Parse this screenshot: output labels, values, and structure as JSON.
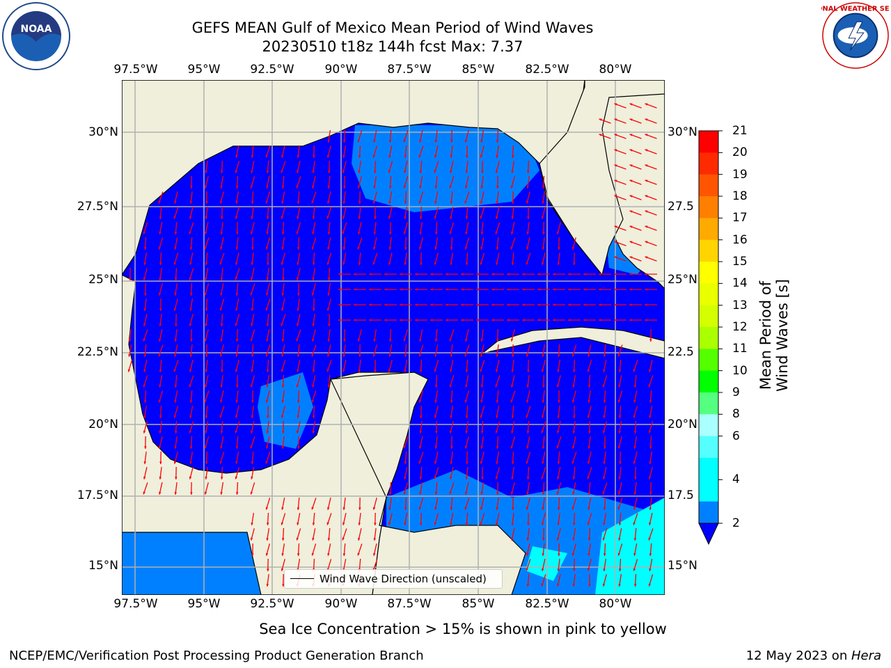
{
  "title": {
    "line1": "GEFS MEAN Gulf of Mexico Mean Period of Wind Waves",
    "line2": "20230510 t18z 144h fcst   Max: 7.37"
  },
  "logos": {
    "left": {
      "icon": "noaa-logo-icon",
      "text": "NOAA"
    },
    "right": {
      "icon": "nws-logo-icon",
      "text": "NATIONAL WEATHER SERVICE"
    }
  },
  "map": {
    "lon_ticks": [
      "97.5°W",
      "95°W",
      "92.5°W",
      "90°W",
      "87.5°W",
      "85°W",
      "82.5°W",
      "80°W"
    ],
    "lat_ticks_left": [
      "30°N",
      "27.5°N",
      "25°N",
      "22.5°N",
      "20°N",
      "17.5°N",
      "15°N"
    ],
    "lat_ticks_right": [
      "30°N",
      "27.5",
      "25°N",
      "22.5",
      "20°N",
      "17.5",
      "15°N"
    ],
    "lon_range": [
      -98,
      -78.25
    ],
    "lat_range": [
      14,
      31.6
    ],
    "colors": {
      "land": "#efefdc",
      "coast": "#000000",
      "grid": "#b0b0b0",
      "arrow": "#ff0000"
    }
  },
  "legend": {
    "label": "Wind Wave Direction (unscaled)"
  },
  "colorbar": {
    "label": "Mean Period of Wind Waves [s]",
    "ticks": [
      "21",
      "20",
      "19",
      "18",
      "17",
      "16",
      "15",
      "14",
      "13",
      "12",
      "11",
      "10",
      "9",
      "8",
      "6",
      "4",
      "2"
    ],
    "colors": [
      "#ff0000",
      "#ff2a00",
      "#ff5500",
      "#ff7f00",
      "#ffaa00",
      "#ffd400",
      "#ffff00",
      "#eaff00",
      "#d4ff00",
      "#aaff00",
      "#55ff00",
      "#00ff00",
      "#55ff7f",
      "#aaffff",
      "#55ffff",
      "#00ffff",
      "#00ffff",
      "#0080ff"
    ],
    "extend_color": "#0000ff"
  },
  "note": "Sea Ice Concentration > 15% is shown in pink to yellow",
  "footer": {
    "left": "NCEP/EMC/Verification Post Processing Product Generation Branch",
    "right_prefix": "12 May 2023 on ",
    "right_host": "Hera"
  }
}
